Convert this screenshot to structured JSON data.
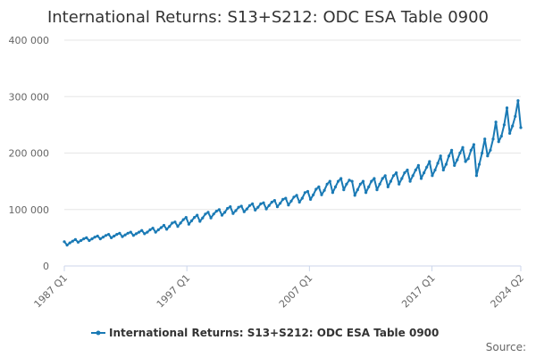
{
  "chart_data": {
    "type": "line",
    "title": "International Returns: S13+S212: ODC ESA Table 0900",
    "xlabel": "",
    "ylabel": "",
    "ylim": [
      0,
      400000
    ],
    "y_ticks": [
      "0",
      "100 000",
      "200 000",
      "300 000",
      "400 000"
    ],
    "y_tick_values": [
      0,
      100000,
      200000,
      300000,
      400000
    ],
    "x_tick_labels": [
      "1987 Q1",
      "1997 Q1",
      "2007 Q1",
      "2017 Q1",
      "2024 Q2"
    ],
    "x_start": "1987 Q1",
    "x_end": "2024 Q2",
    "grid": true,
    "legend_position": "bottom",
    "series": [
      {
        "name": "International Returns: S13+S212: ODC ESA Table 0900",
        "color": "#1a7ab5",
        "values": [
          43000,
          37000,
          41000,
          44000,
          47000,
          42000,
          45000,
          48000,
          50000,
          45000,
          48000,
          51000,
          53000,
          48000,
          51000,
          54000,
          56000,
          50000,
          53000,
          56000,
          58000,
          52000,
          55000,
          58000,
          60000,
          54000,
          57000,
          60000,
          63000,
          57000,
          60000,
          64000,
          67000,
          60000,
          64000,
          68000,
          72000,
          65000,
          70000,
          76000,
          78000,
          70000,
          76000,
          82000,
          86000,
          74000,
          80000,
          86000,
          90000,
          79000,
          85000,
          92000,
          95000,
          85000,
          92000,
          97000,
          100000,
          90000,
          95000,
          102000,
          105000,
          93000,
          98000,
          104000,
          106000,
          96000,
          101000,
          107000,
          110000,
          99000,
          104000,
          110000,
          112000,
          101000,
          107000,
          113000,
          116000,
          105000,
          111000,
          118000,
          120000,
          108000,
          115000,
          122000,
          125000,
          113000,
          120000,
          130000,
          132000,
          118000,
          126000,
          136000,
          140000,
          126000,
          134000,
          145000,
          150000,
          130000,
          140000,
          150000,
          155000,
          135000,
          145000,
          152000,
          150000,
          125000,
          135000,
          145000,
          150000,
          130000,
          140000,
          150000,
          155000,
          135000,
          145000,
          155000,
          160000,
          140000,
          150000,
          160000,
          165000,
          145000,
          155000,
          165000,
          170000,
          150000,
          160000,
          170000,
          178000,
          155000,
          165000,
          175000,
          185000,
          160000,
          170000,
          182000,
          195000,
          170000,
          180000,
          195000,
          205000,
          178000,
          188000,
          200000,
          210000,
          185000,
          190000,
          205000,
          215000,
          160000,
          180000,
          200000,
          225000,
          195000,
          205000,
          225000,
          255000,
          220000,
          230000,
          250000,
          280000,
          235000,
          248000,
          265000,
          293000,
          245000
        ]
      }
    ]
  }
}
